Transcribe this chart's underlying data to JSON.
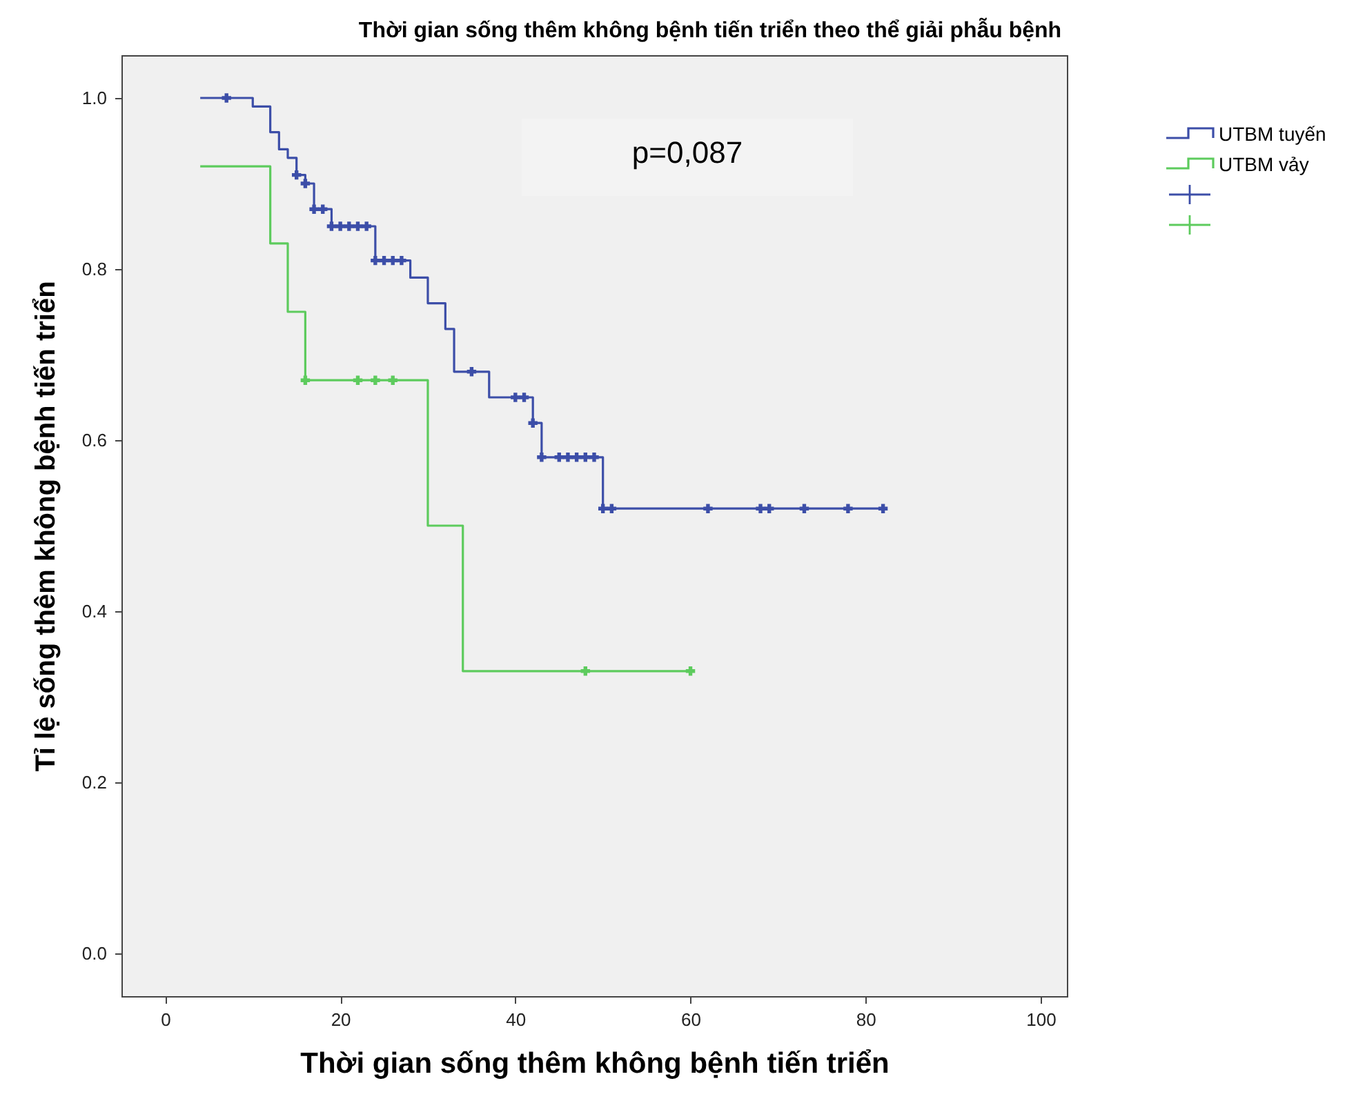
{
  "chart_data": {
    "type": "step",
    "title": "Thời gian sống thêm không bệnh tiến triển theo thể giải phẫu bệnh",
    "xlabel": "Thời gian sống thêm không bệnh tiến triển",
    "ylabel": "Tỉ lệ sống thêm không bệnh tiến triển",
    "annotations": [
      "p=0,087"
    ],
    "xlim": [
      -5,
      103
    ],
    "ylim": [
      -0.05,
      1.05
    ],
    "xticks": [
      0,
      20,
      40,
      60,
      80,
      100
    ],
    "yticks": [
      {
        "value": 0,
        "label": "0.0"
      },
      0.2,
      0.4,
      0.6,
      0.8,
      {
        "value": 1,
        "label": "1.0"
      }
    ],
    "grid": false,
    "legend": "top right",
    "series": [
      {
        "name": "UTBM tuyến",
        "type": "step",
        "color": "#3c4ea8",
        "x": [
          4,
          10,
          12,
          13,
          14,
          15,
          16,
          17,
          19,
          24,
          28,
          30,
          32,
          33,
          37,
          42,
          43,
          50,
          82
        ],
        "values": [
          1,
          0.99,
          0.96,
          0.94,
          0.93,
          0.91,
          0.9,
          0.87,
          0.85,
          0.81,
          0.79,
          0.76,
          0.73,
          0.68,
          0.65,
          0.62,
          0.58,
          0.52,
          0.52
        ]
      },
      {
        "name": "UTBM vảy",
        "type": "step",
        "color": "#5dcb5d",
        "x": [
          4,
          12,
          14,
          16,
          30,
          34,
          60
        ],
        "values": [
          0.92,
          0.83,
          0.75,
          0.67,
          0.5,
          0.33,
          0.33
        ]
      },
      {
        "type": "scatter",
        "marker": "cross",
        "color": "#3c4ea8",
        "x": [
          7,
          15,
          16,
          17,
          18,
          19,
          20,
          21,
          22,
          23,
          24,
          25,
          26,
          27,
          35,
          40,
          41,
          42,
          43,
          45,
          46,
          47,
          48,
          49,
          50,
          51,
          62,
          68,
          69,
          73,
          78,
          82
        ],
        "values": [
          1,
          0.91,
          0.9,
          0.87,
          0.87,
          0.85,
          0.85,
          0.85,
          0.85,
          0.85,
          0.81,
          0.81,
          0.81,
          0.81,
          0.68,
          0.65,
          0.65,
          0.62,
          0.58,
          0.58,
          0.58,
          0.58,
          0.58,
          0.58,
          0.52,
          0.52,
          0.52,
          0.52,
          0.52,
          0.52,
          0.52,
          0.52
        ]
      },
      {
        "type": "scatter",
        "marker": "cross",
        "color": "#5dcb5d",
        "x": [
          16,
          22,
          24,
          26,
          48,
          60
        ],
        "values": [
          0.67,
          0.67,
          0.67,
          0.67,
          0.33,
          0.33
        ]
      }
    ]
  }
}
